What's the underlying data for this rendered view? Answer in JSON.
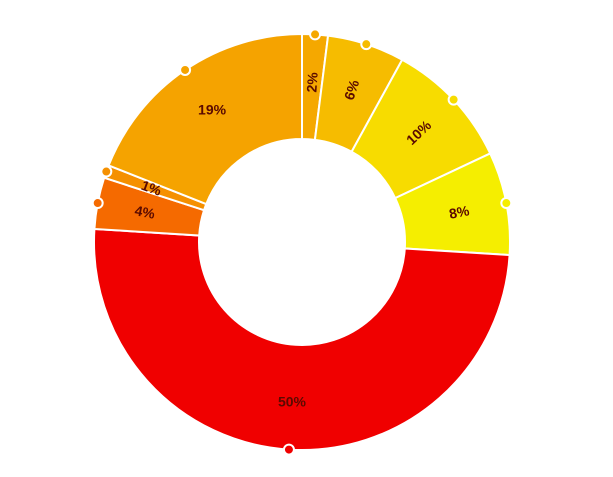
{
  "chart_data": {
    "type": "pie",
    "donut": true,
    "start_angle_deg": 0,
    "direction": "clockwise",
    "slices": [
      {
        "label": "2%",
        "value": 2,
        "color": "#f5a800"
      },
      {
        "label": "6%",
        "value": 6,
        "color": "#f6bc00"
      },
      {
        "label": "10%",
        "value": 10,
        "color": "#f7dc00"
      },
      {
        "label": "8%",
        "value": 8,
        "color": "#f5ee00"
      },
      {
        "label": "50%",
        "value": 50,
        "color": "#f00000"
      },
      {
        "label": "4%",
        "value": 4,
        "color": "#f56a00"
      },
      {
        "label": "1%",
        "value": 1,
        "color": "#f59000"
      },
      {
        "label": "19%",
        "value": 19,
        "color": "#f5a300"
      }
    ]
  }
}
